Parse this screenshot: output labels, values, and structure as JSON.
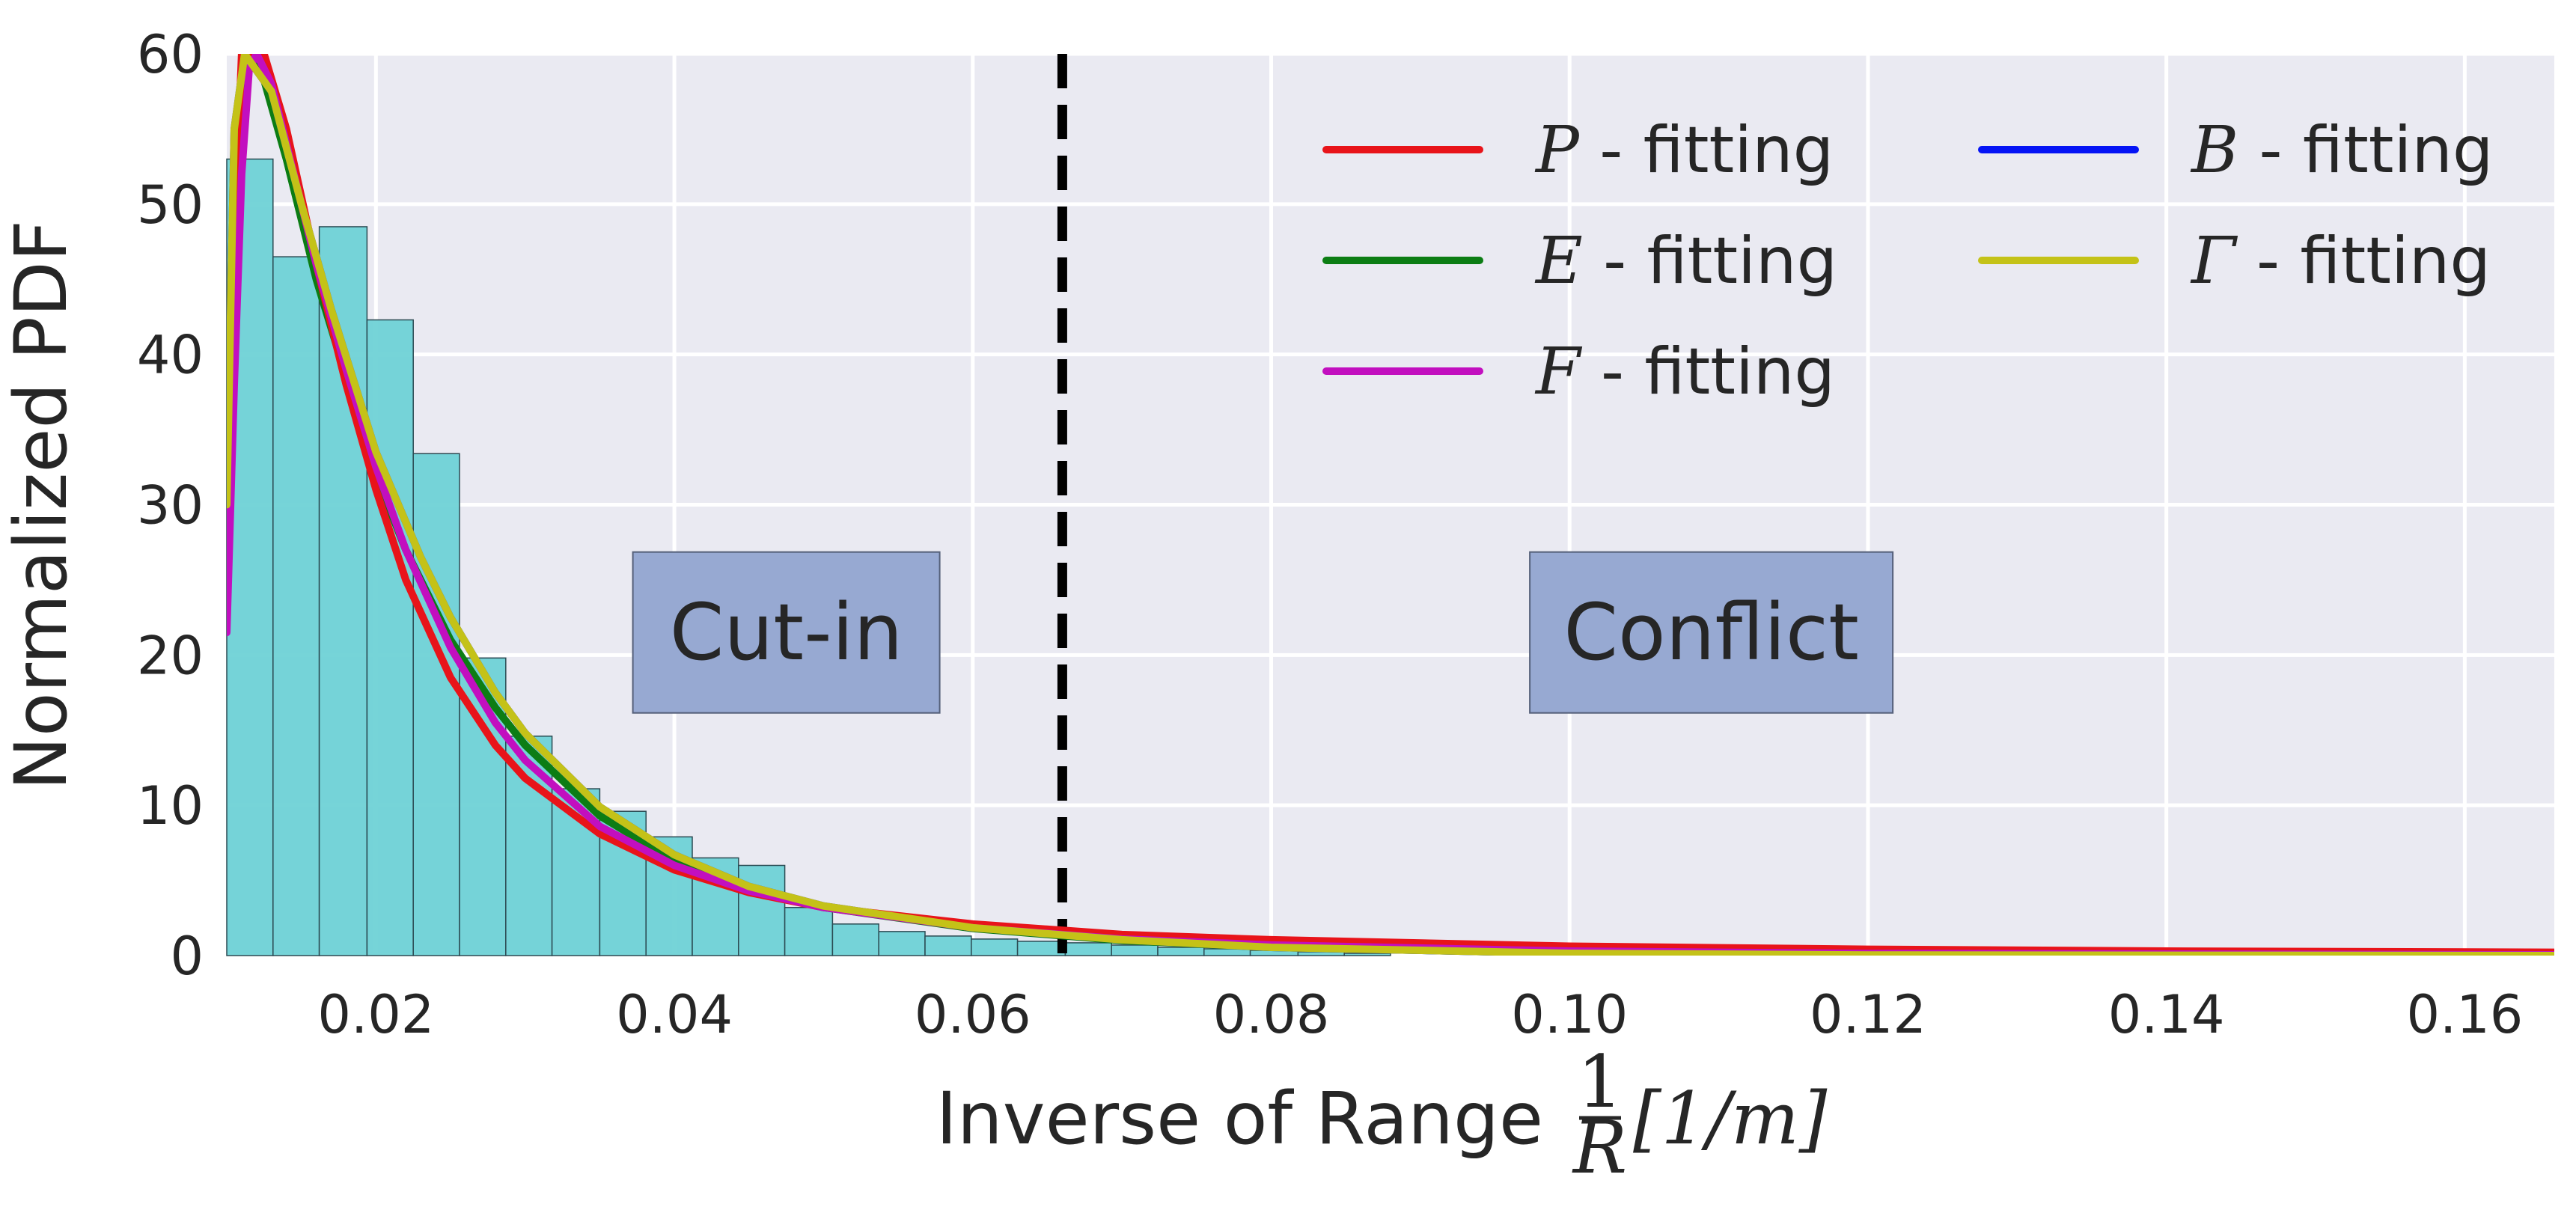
{
  "chart_data": {
    "type": "histogram_with_fits",
    "xlabel": "Inverse of Range",
    "xlabel_math": {
      "frac_num": "1",
      "frac_den": "R",
      "unit": "[1/m]"
    },
    "ylabel": "Normalized PDF",
    "xlim": [
      0.01,
      0.166
    ],
    "ylim": [
      0,
      60
    ],
    "xticks": [
      0.02,
      0.04,
      0.06,
      0.08,
      0.1,
      0.12,
      0.14,
      0.16
    ],
    "xtick_labels": [
      "0.02",
      "0.04",
      "0.06",
      "0.08",
      "0.10",
      "0.12",
      "0.14",
      "0.16"
    ],
    "yticks": [
      0,
      10,
      20,
      30,
      40,
      50,
      60
    ],
    "ytick_labels": [
      "0",
      "10",
      "20",
      "30",
      "40",
      "50",
      "60"
    ],
    "grid": true,
    "histogram": {
      "color": "#6fd2d6",
      "bin_edges": [
        0.01,
        0.0131,
        0.0162,
        0.0194,
        0.0225,
        0.0256,
        0.0287,
        0.0318,
        0.035,
        0.0381,
        0.0412,
        0.0443,
        0.0474,
        0.0506,
        0.0537,
        0.0568,
        0.0599,
        0.063,
        0.0662,
        0.0693,
        0.0724,
        0.0755,
        0.0786,
        0.0818,
        0.0849,
        0.088
      ],
      "heights": [
        53.0,
        46.5,
        48.5,
        42.3,
        33.4,
        19.8,
        14.6,
        11.1,
        9.6,
        7.9,
        6.5,
        6.0,
        3.2,
        2.1,
        1.6,
        1.3,
        1.1,
        0.95,
        0.85,
        0.7,
        0.55,
        0.45,
        0.35,
        0.25,
        0.15
      ]
    },
    "threshold": {
      "x": 0.066,
      "style": "dashed",
      "color": "#000000"
    },
    "annotations": [
      {
        "text": "Cut-in",
        "x": 0.0475,
        "y": 21.5
      },
      {
        "text": "Conflict",
        "x": 0.1095,
        "y": 21.5
      }
    ],
    "series": [
      {
        "name": "P",
        "label": " - fitting",
        "color": "#e8141a",
        "values": [
          [
            0.01,
            35.0
          ],
          [
            0.011,
            60.0
          ],
          [
            0.0125,
            60.0
          ],
          [
            0.014,
            55.0
          ],
          [
            0.016,
            46.0
          ],
          [
            0.018,
            38.0
          ],
          [
            0.02,
            31.0
          ],
          [
            0.022,
            25.0
          ],
          [
            0.025,
            18.5
          ],
          [
            0.028,
            14.0
          ],
          [
            0.03,
            11.8
          ],
          [
            0.035,
            8.1
          ],
          [
            0.04,
            5.7
          ],
          [
            0.045,
            4.2
          ],
          [
            0.05,
            3.2
          ],
          [
            0.06,
            2.1
          ],
          [
            0.07,
            1.4
          ],
          [
            0.08,
            1.05
          ],
          [
            0.1,
            0.62
          ],
          [
            0.12,
            0.42
          ],
          [
            0.14,
            0.3
          ],
          [
            0.166,
            0.22
          ]
        ]
      },
      {
        "name": "E",
        "label": " - fitting",
        "color": "#0c7d14",
        "values": [
          [
            0.01,
            30.0
          ],
          [
            0.011,
            58.0
          ],
          [
            0.012,
            60.0
          ],
          [
            0.014,
            53.0
          ],
          [
            0.016,
            45.0
          ],
          [
            0.018,
            38.5
          ],
          [
            0.02,
            32.0
          ],
          [
            0.022,
            27.0
          ],
          [
            0.025,
            21.0
          ],
          [
            0.028,
            16.5
          ],
          [
            0.03,
            14.0
          ],
          [
            0.035,
            9.3
          ],
          [
            0.04,
            6.3
          ],
          [
            0.045,
            4.4
          ],
          [
            0.05,
            3.2
          ],
          [
            0.06,
            1.8
          ],
          [
            0.07,
            1.0
          ],
          [
            0.08,
            0.55
          ],
          [
            0.1,
            0.15
          ],
          [
            0.12,
            0.05
          ],
          [
            0.166,
            0.0
          ]
        ]
      },
      {
        "name": "F",
        "label": " - fitting",
        "color": "#c20fbf",
        "values": [
          [
            0.01,
            21.5
          ],
          [
            0.0105,
            38.0
          ],
          [
            0.011,
            52.0
          ],
          [
            0.0115,
            59.0
          ],
          [
            0.012,
            60.0
          ],
          [
            0.013,
            58.0
          ],
          [
            0.0145,
            52.0
          ],
          [
            0.016,
            46.0
          ],
          [
            0.018,
            39.0
          ],
          [
            0.02,
            32.5
          ],
          [
            0.022,
            27.0
          ],
          [
            0.025,
            20.5
          ],
          [
            0.028,
            15.5
          ],
          [
            0.03,
            13.0
          ],
          [
            0.035,
            8.6
          ],
          [
            0.04,
            6.0
          ],
          [
            0.045,
            4.3
          ],
          [
            0.05,
            3.2
          ],
          [
            0.06,
            1.85
          ],
          [
            0.07,
            1.1
          ],
          [
            0.08,
            0.7
          ],
          [
            0.1,
            0.3
          ],
          [
            0.12,
            0.14
          ],
          [
            0.166,
            0.05
          ]
        ]
      },
      {
        "name": "B",
        "label": " - fitting",
        "color": "#0514f5",
        "values": [
          [
            0.01,
            30.0
          ],
          [
            0.0105,
            55.0
          ],
          [
            0.0112,
            60.0
          ],
          [
            0.013,
            57.5
          ],
          [
            0.015,
            50.0
          ],
          [
            0.017,
            43.0
          ],
          [
            0.02,
            33.5
          ],
          [
            0.023,
            26.5
          ],
          [
            0.025,
            22.5
          ],
          [
            0.028,
            17.5
          ],
          [
            0.03,
            14.8
          ],
          [
            0.035,
            9.9
          ],
          [
            0.04,
            6.7
          ],
          [
            0.045,
            4.6
          ],
          [
            0.05,
            3.3
          ],
          [
            0.06,
            1.85
          ],
          [
            0.07,
            1.05
          ],
          [
            0.08,
            0.55
          ],
          [
            0.1,
            0.15
          ],
          [
            0.12,
            0.04
          ],
          [
            0.166,
            0.0
          ]
        ]
      },
      {
        "name": "Γ",
        "label": " - fitting",
        "color": "#c4c218",
        "values": [
          [
            0.01,
            30.0
          ],
          [
            0.0105,
            55.0
          ],
          [
            0.0112,
            60.0
          ],
          [
            0.013,
            57.5
          ],
          [
            0.015,
            50.0
          ],
          [
            0.017,
            43.0
          ],
          [
            0.02,
            33.5
          ],
          [
            0.023,
            26.5
          ],
          [
            0.025,
            22.5
          ],
          [
            0.028,
            17.5
          ],
          [
            0.03,
            14.8
          ],
          [
            0.035,
            9.9
          ],
          [
            0.04,
            6.7
          ],
          [
            0.045,
            4.6
          ],
          [
            0.05,
            3.3
          ],
          [
            0.06,
            1.85
          ],
          [
            0.07,
            1.05
          ],
          [
            0.08,
            0.55
          ],
          [
            0.1,
            0.15
          ],
          [
            0.12,
            0.04
          ],
          [
            0.166,
            0.0
          ]
        ]
      }
    ],
    "legend": {
      "placement": "top-right",
      "columns": 2,
      "order": [
        "P",
        "E",
        "F",
        "B",
        "Γ"
      ]
    }
  }
}
